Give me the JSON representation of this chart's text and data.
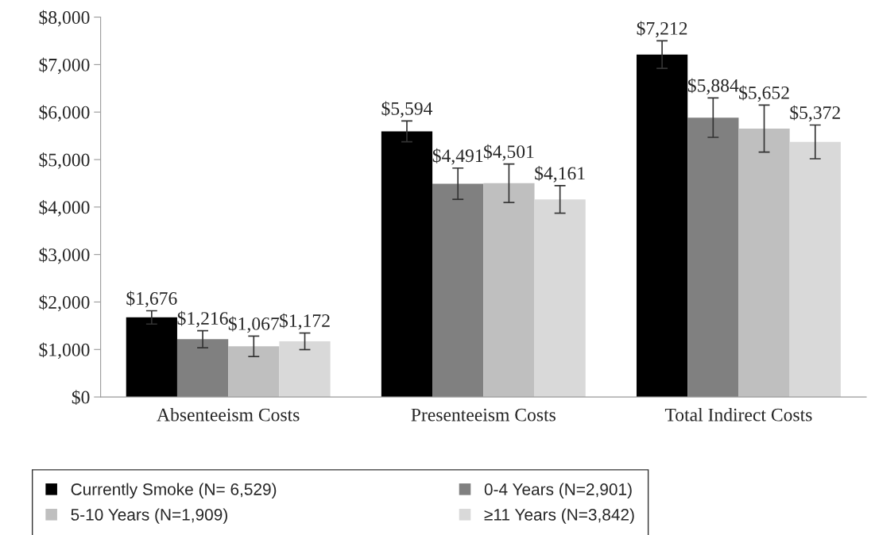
{
  "chart_data": {
    "type": "bar",
    "categories": [
      "Absenteeism Costs",
      "Presenteeism Costs",
      "Total Indirect Costs"
    ],
    "series": [
      {
        "name": "Currently Smoke (N= 6,529)",
        "color": "#000000",
        "values": [
          1676,
          5594,
          7212
        ],
        "errors": [
          140,
          220,
          290
        ],
        "value_labels": [
          "$1,676",
          "$5,594",
          "$7,212"
        ]
      },
      {
        "name": "0-4 Years (N=2,901)",
        "color": "#808080",
        "values": [
          1216,
          4491,
          5884
        ],
        "errors": [
          180,
          330,
          415
        ],
        "value_labels": [
          "$1,216",
          "$4,491",
          "$5,884"
        ]
      },
      {
        "name": "5-10 Years (N=1,909)",
        "color": "#bfbfbf",
        "values": [
          1067,
          4501,
          5652
        ],
        "errors": [
          215,
          405,
          495
        ],
        "value_labels": [
          "$1,067",
          "$4,501",
          "$5,652"
        ]
      },
      {
        "name": "≥11 Years (N=3,842)",
        "color": "#d9d9d9",
        "values": [
          1172,
          4161,
          5372
        ],
        "errors": [
          175,
          290,
          355
        ],
        "value_labels": [
          "$1,172",
          "$4,161",
          "$5,372"
        ]
      }
    ],
    "ylim": [
      0,
      8000
    ],
    "yticks": [
      {
        "value": 0,
        "label": "$0"
      },
      {
        "value": 1000,
        "label": "$1,000"
      },
      {
        "value": 2000,
        "label": "$2,000"
      },
      {
        "value": 3000,
        "label": "$3,000"
      },
      {
        "value": 4000,
        "label": "$4,000"
      },
      {
        "value": 5000,
        "label": "$5,000"
      },
      {
        "value": 6000,
        "label": "$6,000"
      },
      {
        "value": 7000,
        "label": "$7,000"
      },
      {
        "value": 8000,
        "label": "$8,000"
      }
    ],
    "grid": false,
    "legend": "bottom"
  }
}
